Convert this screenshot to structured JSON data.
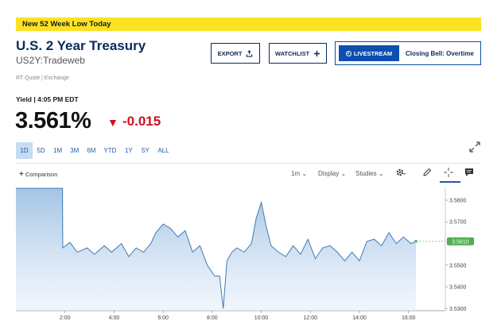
{
  "alert": {
    "text": "New 52 Week Low Today"
  },
  "header": {
    "title": "U.S. 2 Year Treasury",
    "symbol": "US2Y:Tradeweb",
    "quote_source": "RT Quote | Exchange"
  },
  "actions": {
    "export_label": "EXPORT",
    "watchlist_label": "WATCHLIST",
    "livestream_label": "LIVESTREAM",
    "live_show": "Closing Bell: Overtime"
  },
  "quote": {
    "yield_label": "Yield | 4:05 PM EDT",
    "price": "3.561%",
    "change": "-0.015",
    "change_arrow": "▼"
  },
  "ranges": [
    {
      "label": "1D",
      "active": true
    },
    {
      "label": "5D",
      "active": false
    },
    {
      "label": "1M",
      "active": false
    },
    {
      "label": "3M",
      "active": false
    },
    {
      "label": "6M",
      "active": false
    },
    {
      "label": "YTD",
      "active": false
    },
    {
      "label": "1Y",
      "active": false
    },
    {
      "label": "5Y",
      "active": false
    },
    {
      "label": "ALL",
      "active": false
    }
  ],
  "toolbar": {
    "comparison_label": "Comparison",
    "comparison_icon": "plus-icon",
    "interval": "1m",
    "display": "Display",
    "studies": "Studies",
    "icons": [
      "gear-icon",
      "pencil-icon",
      "crosshair-icon",
      "comment-icon",
      "expand-icon"
    ]
  },
  "colors": {
    "accent": "#0c4fae",
    "alert": "#fbe324",
    "negative": "#d0101a",
    "line": "#3d7ab8",
    "fill": "#a9c8e6"
  },
  "chart_data": {
    "type": "area",
    "x_ticks": [
      "2:00",
      "4:00",
      "6:00",
      "8:00",
      "10:00",
      "12:00",
      "14:00",
      "16:00"
    ],
    "y_ticks": [
      "3.5800",
      "3.5700",
      "3.5500",
      "3.5400",
      "3.5300"
    ],
    "last_value_label": "3.5610",
    "ylim": [
      3.529,
      3.5855
    ],
    "x_hours": [
      0,
      1.9,
      1.91,
      2.2,
      2.5,
      2.9,
      3.2,
      3.6,
      3.9,
      4.3,
      4.6,
      4.9,
      5.2,
      5.5,
      5.7,
      6.0,
      6.3,
      6.6,
      6.9,
      7.2,
      7.5,
      7.8,
      8.1,
      8.3,
      8.45,
      8.6,
      8.8,
      9.0,
      9.3,
      9.6,
      9.8,
      10.0,
      10.2,
      10.4,
      10.7,
      11.0,
      11.3,
      11.6,
      11.9,
      12.2,
      12.5,
      12.8,
      13.1,
      13.4,
      13.7,
      14.0,
      14.3,
      14.6,
      14.9,
      15.2,
      15.5,
      15.8,
      16.1,
      16.3
    ],
    "values": [
      3.5855,
      3.5855,
      3.558,
      3.5605,
      3.556,
      3.558,
      3.555,
      3.559,
      3.556,
      3.56,
      3.554,
      3.558,
      3.556,
      3.56,
      3.565,
      3.569,
      3.567,
      3.563,
      3.566,
      3.556,
      3.559,
      3.55,
      3.545,
      3.545,
      3.53,
      3.552,
      3.556,
      3.558,
      3.556,
      3.56,
      3.572,
      3.579,
      3.568,
      3.559,
      3.556,
      3.554,
      3.559,
      3.555,
      3.562,
      3.553,
      3.558,
      3.559,
      3.556,
      3.552,
      3.556,
      3.552,
      3.561,
      3.562,
      3.559,
      3.565,
      3.56,
      3.563,
      3.56,
      3.561
    ]
  }
}
